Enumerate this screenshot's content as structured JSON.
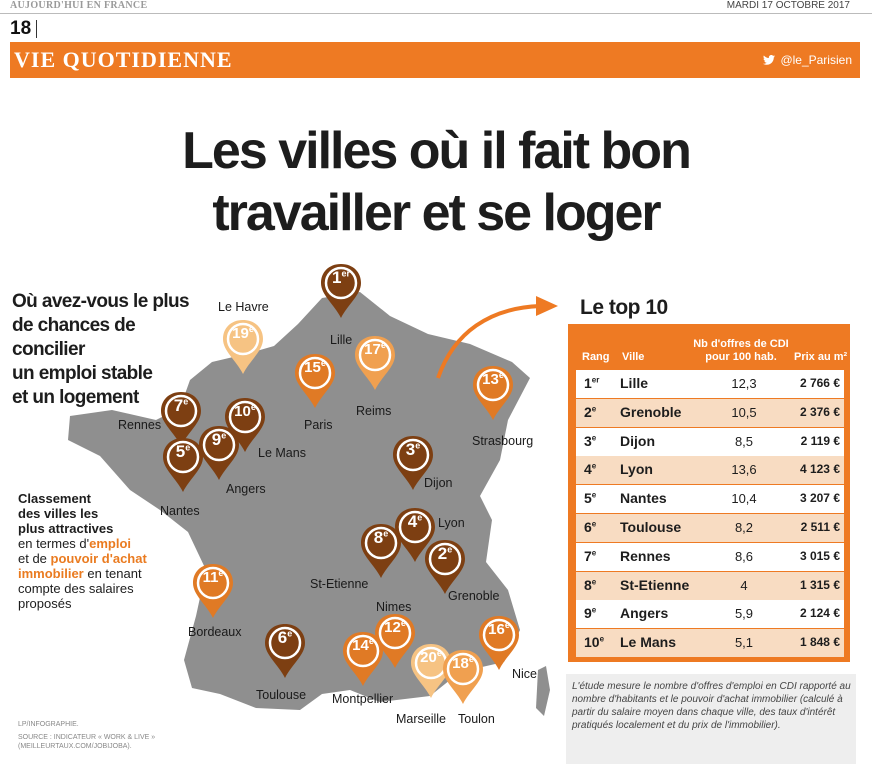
{
  "masthead": {
    "left": "AUJOURD'HUI EN FRANCE",
    "right": "MARDI 17 OCTOBRE 2017",
    "page_number": "18"
  },
  "section": {
    "title": "VIE QUOTIDIENNE",
    "handle": "@le_Parisien",
    "icon": "twitter-bird-icon"
  },
  "headline": {
    "line1": "Les villes où il fait bon",
    "line2": "travailler et se loger"
  },
  "question": {
    "line1": "Où avez-vous le plus",
    "line2": "de chances de concilier",
    "line3": "un emploi stable",
    "line4": "et un logement"
  },
  "classement": {
    "p1": "Classement",
    "p2": "des villes les",
    "p3": "plus attractives",
    "p4": "en termes d'",
    "p5": "emploi",
    "p6": "et de ",
    "p7": "pouvoir d'achat",
    "p8": "immobilier",
    "p9": " en tenant",
    "p10": "compte des salaires",
    "p11": "proposés"
  },
  "map": {
    "pins": [
      {
        "rank": "1",
        "suffix": "er",
        "label": "Lille",
        "style": "dark"
      },
      {
        "rank": "19",
        "suffix": "e",
        "label": "Le Havre",
        "style": "pale"
      },
      {
        "rank": "17",
        "suffix": "e",
        "label": "Reims",
        "style": "light"
      },
      {
        "rank": "15",
        "suffix": "e",
        "label": "Paris",
        "style": "mid"
      },
      {
        "rank": "13",
        "suffix": "e",
        "label": "Strasbourg",
        "style": "mid"
      },
      {
        "rank": "7",
        "suffix": "e",
        "label": "Rennes",
        "style": "dark"
      },
      {
        "rank": "10",
        "suffix": "e",
        "label": "Le Mans",
        "style": "dark"
      },
      {
        "rank": "9",
        "suffix": "e",
        "label": "Angers",
        "style": "dark"
      },
      {
        "rank": "5",
        "suffix": "e",
        "label": "Nantes",
        "style": "dark"
      },
      {
        "rank": "3",
        "suffix": "e",
        "label": "Dijon",
        "style": "dark"
      },
      {
        "rank": "4",
        "suffix": "e",
        "label": "Lyon",
        "style": "dark"
      },
      {
        "rank": "8",
        "suffix": "e",
        "label": "St-Etienne",
        "style": "dark"
      },
      {
        "rank": "2",
        "suffix": "e",
        "label": "Grenoble",
        "style": "dark"
      },
      {
        "rank": "11",
        "suffix": "e",
        "label": "Bordeaux",
        "style": "mid"
      },
      {
        "rank": "6",
        "suffix": "e",
        "label": "Toulouse",
        "style": "dark"
      },
      {
        "rank": "14",
        "suffix": "e",
        "label": "Montpellier",
        "style": "mid"
      },
      {
        "rank": "12",
        "suffix": "e",
        "label": "Nimes",
        "style": "mid"
      },
      {
        "rank": "20",
        "suffix": "e",
        "label": "Marseille",
        "style": "pale"
      },
      {
        "rank": "18",
        "suffix": "e",
        "label": "Toulon",
        "style": "light"
      },
      {
        "rank": "16",
        "suffix": "e",
        "label": "Nice",
        "style": "mid"
      }
    ]
  },
  "top10": {
    "title": "Le top 10",
    "headers": {
      "rank": "Rang",
      "city": "Ville",
      "offers_l1": "Nb d'offres de CDI",
      "offers_l2": "pour 100 hab.",
      "price": "Prix au m²"
    },
    "rows": [
      {
        "rank": "1",
        "suffix": "er",
        "city": "Lille",
        "offers": "12,3",
        "price": "2 766 €"
      },
      {
        "rank": "2",
        "suffix": "e",
        "city": "Grenoble",
        "offers": "10,5",
        "price": "2 376 €"
      },
      {
        "rank": "3",
        "suffix": "e",
        "city": "Dijon",
        "offers": "8,5",
        "price": "2 119 €"
      },
      {
        "rank": "4",
        "suffix": "e",
        "city": "Lyon",
        "offers": "13,6",
        "price": "4 123 €"
      },
      {
        "rank": "5",
        "suffix": "e",
        "city": "Nantes",
        "offers": "10,4",
        "price": "3 207 €"
      },
      {
        "rank": "6",
        "suffix": "e",
        "city": "Toulouse",
        "offers": "8,2",
        "price": "2 511 €"
      },
      {
        "rank": "7",
        "suffix": "e",
        "city": "Rennes",
        "offers": "8,6",
        "price": "3 015 €"
      },
      {
        "rank": "8",
        "suffix": "e",
        "city": "St-Etienne",
        "offers": "4",
        "price": "1 315 €"
      },
      {
        "rank": "9",
        "suffix": "e",
        "city": "Angers",
        "offers": "5,9",
        "price": "2 124 €"
      },
      {
        "rank": "10",
        "suffix": "e",
        "city": "Le Mans",
        "offers": "5,1",
        "price": "1 848 €"
      }
    ]
  },
  "note": "L'étude mesure le nombre d'offres d'emploi en CDI rapporté au nombre d'habitants et le pouvoir d'achat immobilier (calculé à partir du salaire moyen dans chaque ville, des taux d'intérêt pratiqués localement et du prix de l'immobilier).",
  "credit": {
    "l1": "LP/INFOGRAPHIE.",
    "l2": "SOURCE : INDICATEUR « WORK & LIVE »",
    "l3": "(MEILLEURTAUX.COM/JOBIJOBA)."
  },
  "colors": {
    "accent": "#ee7a23",
    "dark_pin": "#7d3f12",
    "mid_pin": "#e07a25",
    "light_pin": "#f0a050",
    "pale_pin": "#f6c383",
    "map": "#8f8f8f"
  }
}
